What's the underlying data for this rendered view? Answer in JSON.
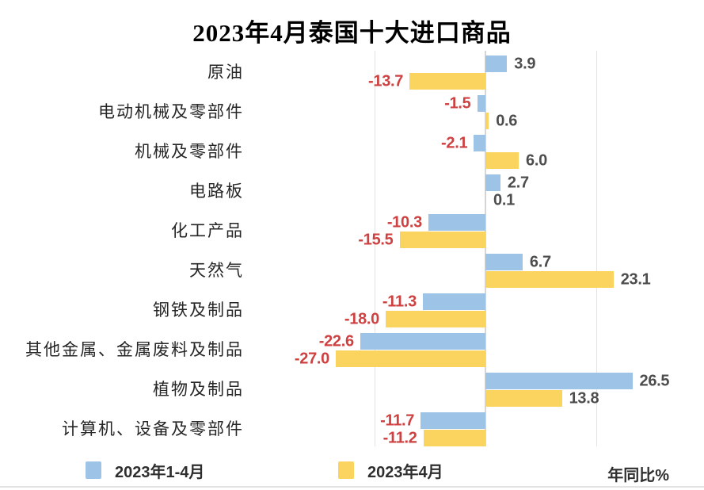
{
  "chart_data": {
    "type": "bar",
    "orientation": "horizontal",
    "title": "2023年4月泰国十大进口商品",
    "categories": [
      "原油",
      "电动机械及零部件",
      "机械及零部件",
      "电路板",
      "化工产品",
      "天然气",
      "钢铁及制品",
      "其他金属、金属废料及制品",
      "植物及制品",
      "计算机、设备及零部件"
    ],
    "series": [
      {
        "name": "2023年1-4月",
        "color": "#9DC3E6",
        "values": [
          3.9,
          -1.5,
          -2.1,
          2.7,
          -10.3,
          6.7,
          -11.3,
          -22.6,
          26.5,
          -11.7
        ]
      },
      {
        "name": "2023年4月",
        "color": "#FAD45E",
        "values": [
          -13.7,
          0.6,
          6.0,
          0.1,
          -15.5,
          23.1,
          -18.0,
          -27.0,
          13.8,
          -11.2
        ]
      }
    ],
    "value_axis": {
      "min": -30,
      "max": 30,
      "gridlines": [
        -20,
        0,
        20
      ],
      "tick_labels_visible": false
    },
    "unit_label": "年同比%",
    "legend_position": "bottom",
    "data_labels": "one-decimal",
    "positive_label_color": "#4D4D4D",
    "negative_label_color": "#CF4141"
  }
}
